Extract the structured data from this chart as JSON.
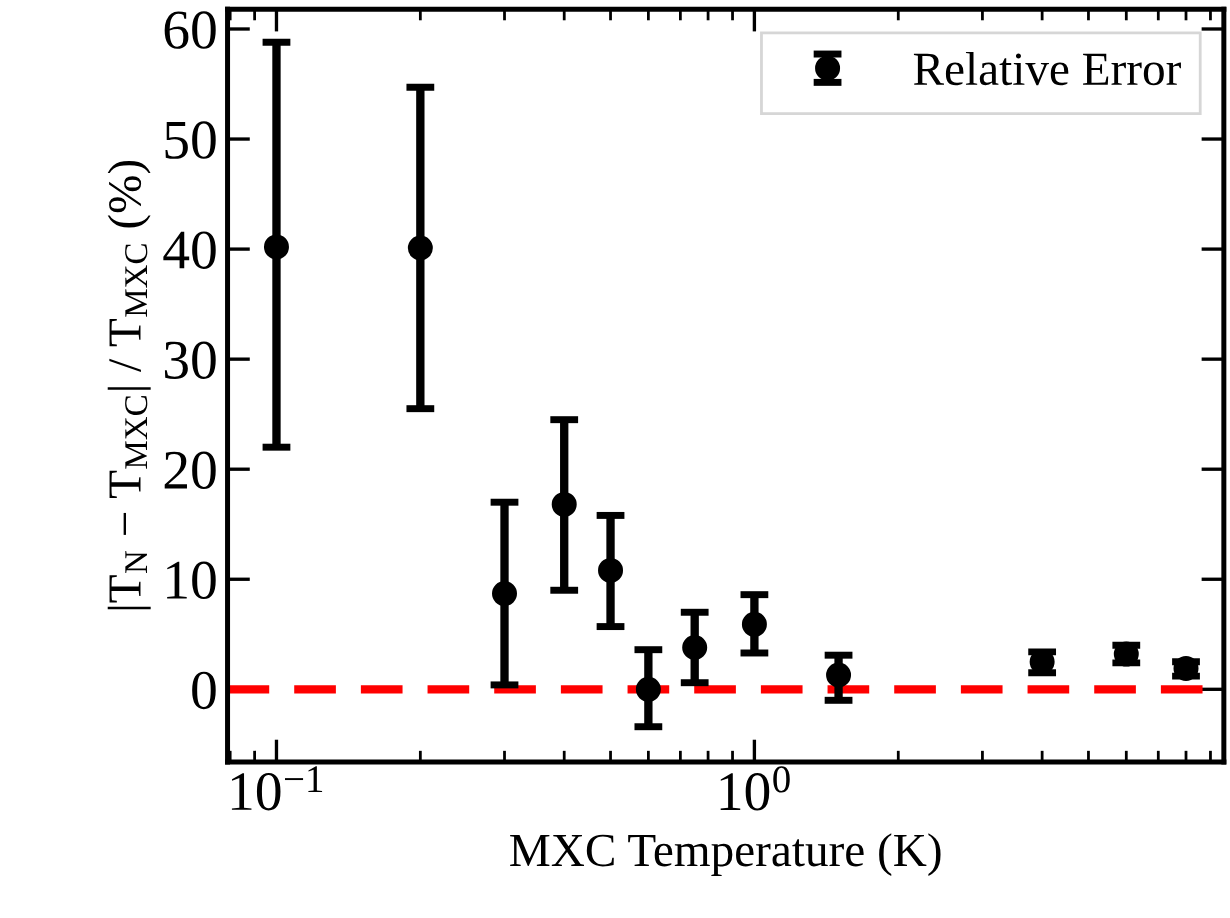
{
  "chart_data": {
    "type": "scatter",
    "xlabel": "MXC Temperature (K)",
    "ylabel": "|T$_{N}$ − T$_{MXC}$| / T$_{MXC}$ (%)",
    "log": "x",
    "xlim": [
      0.079,
      9.6
    ],
    "xticks": [
      {
        "value": 0.1,
        "label": "10$^{−1}$"
      },
      {
        "value": 1,
        "label": "10$^{0}$"
      }
    ],
    "ylim": [
      -6.6,
      61.8
    ],
    "yticks": [
      0,
      10,
      20,
      30,
      40,
      50,
      60
    ],
    "legend": "top right",
    "marker": "circle",
    "series": [
      {
        "name": "Relative Error",
        "color": "#000000",
        "x": [
          0.1,
          0.2,
          0.3,
          0.4,
          0.5,
          0.6,
          0.75,
          1.0,
          1.5,
          4,
          6,
          8
        ],
        "values": [
          40.2,
          40.1,
          8.7,
          16.8,
          10.8,
          0,
          3.8,
          5.9,
          1.3,
          2.5,
          3.2,
          1.9
        ],
        "errors": [
          [
            22,
            58.8
          ],
          [
            25.5,
            54.7
          ],
          [
            0.4,
            17
          ],
          [
            9,
            24.5
          ],
          [
            5.7,
            15.8
          ],
          [
            -3.4,
            3.6
          ],
          [
            0.6,
            7
          ],
          [
            3.3,
            8.6
          ],
          [
            -1,
            3.1
          ],
          [
            1.5,
            3.4
          ],
          [
            2.4,
            4
          ],
          [
            1.2,
            2.5
          ]
        ]
      }
    ],
    "ref_lines": [
      {
        "axis": "y",
        "value": 0,
        "color": "#ff0000",
        "line_style": "dashed"
      }
    ]
  }
}
